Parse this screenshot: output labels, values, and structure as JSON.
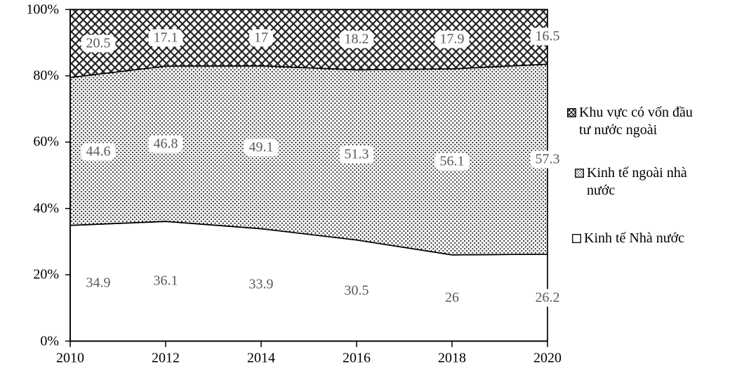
{
  "chart_data": {
    "type": "area",
    "stacking": "percent",
    "title": "",
    "xlabel": "",
    "ylabel": "",
    "grid": false,
    "legend_position": "right",
    "ylim": [
      0,
      100
    ],
    "x": [
      2010,
      2012,
      2014,
      2016,
      2018,
      2020
    ],
    "x_tick_labels": [
      "2010",
      "2012",
      "2014",
      "2016",
      "2018",
      "2020"
    ],
    "y_ticks": [
      0,
      20,
      40,
      60,
      80,
      100
    ],
    "y_tick_labels": [
      "0%",
      "20%",
      "40%",
      "60%",
      "80%",
      "100%"
    ],
    "series": [
      {
        "name": "Kinh tế Nhà nước",
        "pattern": "plain",
        "values": [
          34.9,
          36.1,
          33.9,
          30.5,
          26,
          26.2
        ]
      },
      {
        "name": "Kinh tế ngoài nhà nước",
        "pattern": "dots",
        "values": [
          44.6,
          46.8,
          49.1,
          51.3,
          56.1,
          57.3
        ]
      },
      {
        "name": "Khu vực có vốn đầu tư nước ngoài",
        "pattern": "diamond-crosshatch",
        "values": [
          20.5,
          17.1,
          17,
          18.2,
          17.9,
          16.5
        ]
      }
    ]
  },
  "legend": {
    "items": [
      {
        "swatch": "diamond-crosshatch-swatch",
        "lines": [
          "Khu vực có vốn đầu",
          "tư nước ngoài"
        ]
      },
      {
        "swatch": "dots-swatch",
        "lines": [
          "Kinh tế ngoài nhà",
          "nước"
        ]
      },
      {
        "swatch": "plain-swatch",
        "lines": [
          "Kinh tế Nhà nước"
        ]
      }
    ]
  },
  "colors": {
    "pattern_ink": "#1d1d1d",
    "outline": "#000000",
    "data_label_text": "#595959",
    "axis_text": "#000000",
    "background": "#ffffff"
  }
}
